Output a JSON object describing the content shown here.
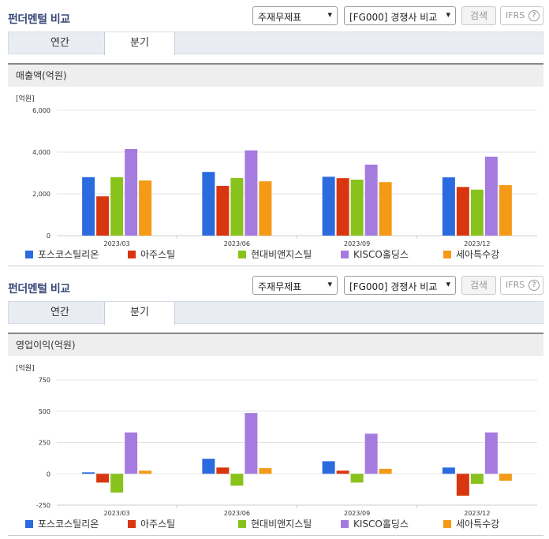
{
  "sections": [
    {
      "title": "펀더멘털 비교",
      "select_statement": "주재무제표",
      "select_peer": "[FG000] 경쟁사 비교",
      "search_label": "검색",
      "ifrs_label": "IFRS",
      "help_label": "?",
      "tabs": [
        {
          "label": "연간",
          "active": false
        },
        {
          "label": "분기",
          "active": true
        }
      ],
      "chart_title": "매출액(억원)"
    },
    {
      "title": "펀더멘털 비교",
      "select_statement": "주재무제표",
      "select_peer": "[FG000] 경쟁사 비교",
      "search_label": "검색",
      "ifrs_label": "IFRS",
      "help_label": "?",
      "tabs": [
        {
          "label": "연간",
          "active": false
        },
        {
          "label": "분기",
          "active": true
        }
      ],
      "chart_title": "영업이익(억원)"
    }
  ],
  "colors": {
    "포스코스틸리온": "#2b6be0",
    "아주스틸": "#d8360f",
    "현대비앤지스틸": "#88c21d",
    "KISCO홀딩스": "#a57be0",
    "세아특수강": "#f49a17"
  },
  "chart_data": [
    {
      "type": "bar",
      "unit_label": "[억원]",
      "categories": [
        "2023/03",
        "2023/06",
        "2023/09",
        "2023/12"
      ],
      "ylim": [
        0,
        6000
      ],
      "yticks": [
        0,
        2000,
        4000,
        6000
      ],
      "ytick_labels": [
        "0",
        "2,000",
        "4,000",
        "6,000"
      ],
      "grid": true,
      "legend_position": "bottom",
      "series": [
        {
          "name": "포스코스틸리온",
          "values": [
            2800,
            3050,
            2820,
            2790
          ]
        },
        {
          "name": "아주스틸",
          "values": [
            1880,
            2380,
            2750,
            2330
          ]
        },
        {
          "name": "현대비앤지스틸",
          "values": [
            2800,
            2760,
            2680,
            2200
          ]
        },
        {
          "name": "KISCO홀딩스",
          "values": [
            4150,
            4080,
            3400,
            3780
          ]
        },
        {
          "name": "세아특수강",
          "values": [
            2640,
            2600,
            2560,
            2420
          ]
        }
      ]
    },
    {
      "type": "bar",
      "unit_label": "[억원]",
      "categories": [
        "2023/03",
        "2023/06",
        "2023/09",
        "2023/12"
      ],
      "ylim": [
        -250,
        750
      ],
      "yticks": [
        -250,
        0,
        250,
        500,
        750
      ],
      "ytick_labels": [
        "-250",
        "0",
        "250",
        "500",
        "750"
      ],
      "grid": true,
      "legend_position": "bottom",
      "series": [
        {
          "name": "포스코스틸리온",
          "values": [
            12,
            120,
            100,
            50
          ]
        },
        {
          "name": "아주스틸",
          "values": [
            -70,
            50,
            25,
            -175
          ]
        },
        {
          "name": "현대비앤지스틸",
          "values": [
            -150,
            -95,
            -70,
            -80
          ]
        },
        {
          "name": "KISCO홀딩스",
          "values": [
            330,
            485,
            320,
            330
          ]
        },
        {
          "name": "세아특수강",
          "values": [
            25,
            45,
            40,
            -55
          ]
        }
      ]
    }
  ]
}
